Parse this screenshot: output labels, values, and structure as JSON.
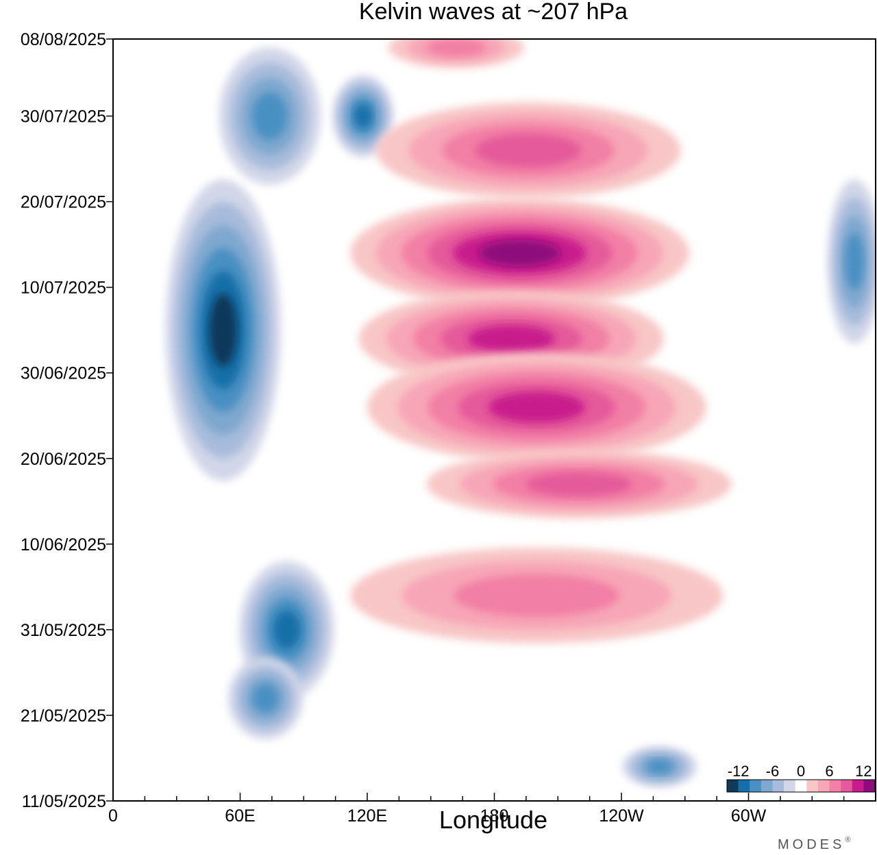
{
  "chart_data": {
    "type": "heatmap",
    "title": "Kelvin waves at ~207 hPa",
    "xlabel": "Longitude",
    "ylabel": "",
    "x_range_deg": [
      0,
      360
    ],
    "x_ticks": [
      {
        "deg": 0,
        "label": "0"
      },
      {
        "deg": 60,
        "label": "60E"
      },
      {
        "deg": 120,
        "label": "120E"
      },
      {
        "deg": 180,
        "label": "180"
      },
      {
        "deg": 240,
        "label": "120W"
      },
      {
        "deg": 300,
        "label": "60W"
      }
    ],
    "y_range_days": [
      0,
      89
    ],
    "y_ticks": [
      {
        "day": 0,
        "label": "11/05/2025"
      },
      {
        "day": 10,
        "label": "21/05/2025"
      },
      {
        "day": 20,
        "label": "31/05/2025"
      },
      {
        "day": 30,
        "label": "10/06/2025"
      },
      {
        "day": 40,
        "label": "20/06/2025"
      },
      {
        "day": 50,
        "label": "30/06/2025"
      },
      {
        "day": 60,
        "label": "10/07/2025"
      },
      {
        "day": 70,
        "label": "20/07/2025"
      },
      {
        "day": 80,
        "label": "30/07/2025"
      },
      {
        "day": 89,
        "label": "08/08/2025"
      }
    ],
    "colorbar": {
      "levels": [
        -14,
        -12,
        -10,
        -8,
        -6,
        -4,
        -2,
        2,
        4,
        6,
        8,
        10,
        12,
        14
      ],
      "colors": [
        "#10395a",
        "#1470a8",
        "#4a90c2",
        "#7fa8cf",
        "#a7bbdb",
        "#d2d6e8",
        "#ffffff",
        "#f8c6c6",
        "#f7a6b7",
        "#f27fa5",
        "#e45a9a",
        "#c81c8c",
        "#8e0c7c"
      ],
      "labels": [
        {
          "value": -12,
          "label": "-12"
        },
        {
          "value": -6,
          "label": "-6"
        },
        {
          "value": 0,
          "label": "0"
        },
        {
          "value": 6,
          "label": "6"
        },
        {
          "value": 12,
          "label": "12"
        }
      ]
    },
    "anomaly_features": [
      {
        "name": "west-pacific-negative-cluster",
        "lon": 52,
        "day": 55,
        "lon_width": 34,
        "day_height": 22,
        "value": -12
      },
      {
        "name": "indian-ocean-negative-upper",
        "lon": 74,
        "day": 80,
        "lon_width": 30,
        "day_height": 10,
        "value": -8
      },
      {
        "name": "negative-120e-top",
        "lon": 118,
        "day": 80,
        "lon_width": 18,
        "day_height": 6,
        "value": -10
      },
      {
        "name": "negative-lower-60e",
        "lon": 82,
        "day": 20,
        "lon_width": 28,
        "day_height": 10,
        "value": -10
      },
      {
        "name": "negative-bottom-60e",
        "lon": 72,
        "day": 12,
        "lon_width": 22,
        "day_height": 6,
        "value": -8
      },
      {
        "name": "negative-east-edge",
        "lon": 350,
        "day": 63,
        "lon_width": 16,
        "day_height": 12,
        "value": -8
      },
      {
        "name": "negative-130w-bottom",
        "lon": 258,
        "day": 4,
        "lon_width": 22,
        "day_height": 3,
        "value": -8
      },
      {
        "name": "positive-band-top",
        "lon": 196,
        "day": 76,
        "lon_width": 90,
        "day_height": 7,
        "value": 8
      },
      {
        "name": "positive-band-core",
        "lon": 192,
        "day": 64,
        "lon_width": 100,
        "day_height": 8,
        "value": 12
      },
      {
        "name": "positive-band-middle",
        "lon": 188,
        "day": 54,
        "lon_width": 90,
        "day_height": 7,
        "value": 10
      },
      {
        "name": "positive-band-lower",
        "lon": 200,
        "day": 46,
        "lon_width": 100,
        "day_height": 8,
        "value": 10
      },
      {
        "name": "positive-band-low",
        "lon": 220,
        "day": 37,
        "lon_width": 90,
        "day_height": 5,
        "value": 8
      },
      {
        "name": "positive-band-may",
        "lon": 200,
        "day": 24,
        "lon_width": 110,
        "day_height": 7,
        "value": 6
      },
      {
        "name": "positive-band-top-edge",
        "lon": 162,
        "day": 88,
        "lon_width": 40,
        "day_height": 3,
        "value": 6
      }
    ]
  },
  "logo": "MODES",
  "logo_mark": "®"
}
